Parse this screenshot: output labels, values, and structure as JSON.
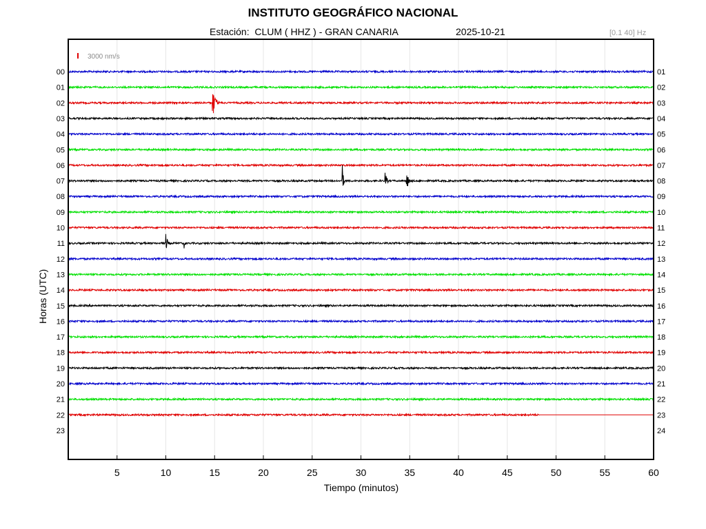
{
  "header": {
    "title": "INSTITUTO GEOGRÁFICO NACIONAL",
    "station": "Estación:  CLUM ( HHZ ) - GRAN CANARIA",
    "date": "2025-10-21",
    "filter": "[0.1 40] Hz"
  },
  "chart_data": {
    "type": "line",
    "title": "INSTITUTO GEOGRÁFICO NACIONAL",
    "xlabel": "Tiempo (minutos)",
    "ylabel": "Horas (UTC)",
    "xlim": [
      0,
      60
    ],
    "x_ticks": [
      "5",
      "10",
      "15",
      "20",
      "25",
      "30",
      "35",
      "40",
      "45",
      "50",
      "55",
      "60"
    ],
    "y_left_ticks": [
      "00",
      "01",
      "02",
      "03",
      "04",
      "05",
      "06",
      "07",
      "08",
      "09",
      "10",
      "11",
      "12",
      "13",
      "14",
      "15",
      "16",
      "17",
      "18",
      "19",
      "20",
      "21",
      "22",
      "23"
    ],
    "y_right_ticks": [
      "01",
      "02",
      "03",
      "04",
      "05",
      "06",
      "07",
      "08",
      "09",
      "10",
      "11",
      "12",
      "13",
      "14",
      "15",
      "16",
      "17",
      "18",
      "19",
      "20",
      "21",
      "22",
      "23",
      "24"
    ],
    "scale_label": "3000 nm/s",
    "grid": true,
    "trace_colors": [
      "#0000cc",
      "#00e000",
      "#e00000",
      "#000000"
    ],
    "data_end": {
      "hour": 22,
      "minute": 48.3
    },
    "events": [
      {
        "hour": 2,
        "minute": 14.8,
        "amplitude": 22,
        "duration": 0.8
      },
      {
        "hour": 7,
        "minute": 28.1,
        "amplitude": 22,
        "duration": 0.3
      },
      {
        "hour": 7,
        "minute": 32.5,
        "amplitude": 12,
        "duration": 0.5
      },
      {
        "hour": 7,
        "minute": 34.7,
        "amplitude": 13,
        "duration": 0.6
      },
      {
        "hour": 11,
        "minute": 10.0,
        "amplitude": 14,
        "duration": 0.5
      },
      {
        "hour": 11,
        "minute": 11.9,
        "amplitude": 7,
        "duration": 0.3
      }
    ]
  }
}
